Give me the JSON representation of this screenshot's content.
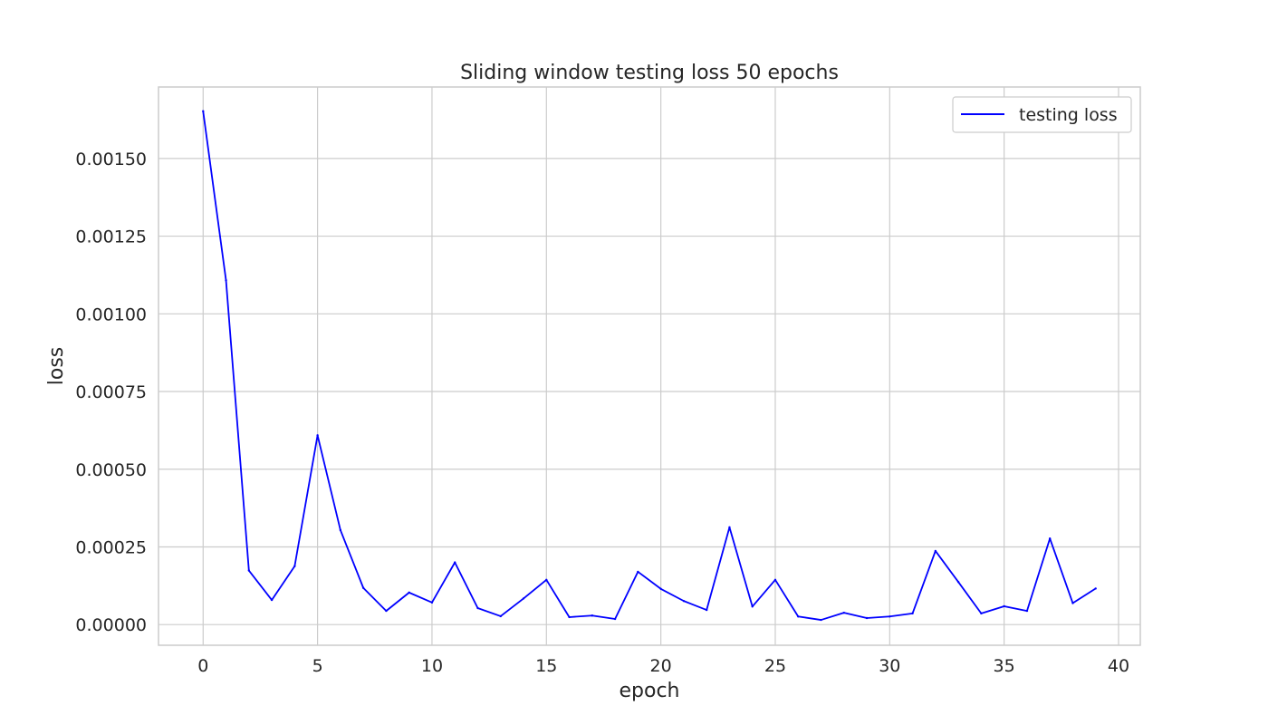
{
  "chart_data": {
    "type": "line",
    "title": "Sliding window testing loss 50 epochs",
    "xlabel": "epoch",
    "ylabel": "loss",
    "xlim": [
      -1.95,
      40.95
    ],
    "ylim": [
      -6.65e-05,
      0.00173
    ],
    "xticks": [
      0,
      5,
      10,
      15,
      20,
      25,
      30,
      35,
      40
    ],
    "xtick_labels": [
      "0",
      "5",
      "10",
      "15",
      "20",
      "25",
      "30",
      "35",
      "40"
    ],
    "yticks": [
      0.0,
      0.00025,
      0.0005,
      0.00075,
      0.001,
      0.00125,
      0.0015
    ],
    "ytick_labels": [
      "0.00000",
      "0.00025",
      "0.00050",
      "0.00075",
      "0.00100",
      "0.00125",
      "0.00150"
    ],
    "grid": true,
    "legend_position": "top-right",
    "series": [
      {
        "name": "testing loss",
        "color": "#0000ff",
        "x": [
          0,
          1,
          2,
          3,
          4,
          5,
          6,
          7,
          8,
          9,
          10,
          11,
          12,
          13,
          14,
          15,
          16,
          17,
          18,
          19,
          20,
          21,
          22,
          23,
          24,
          25,
          26,
          27,
          28,
          29,
          30,
          31,
          32,
          33,
          34,
          35,
          36,
          37,
          38,
          39
        ],
        "values": [
          0.001652,
          0.001108,
          0.000174,
          7.9e-05,
          0.000188,
          0.000609,
          0.000304,
          0.000118,
          4.4e-05,
          0.000103,
          7.1e-05,
          0.0002,
          5.3e-05,
          2.7e-05,
          8.4e-05,
          0.000144,
          2.4e-05,
          2.9e-05,
          1.8e-05,
          0.00017,
          0.000115,
          7.6e-05,
          4.7e-05,
          0.000313,
          5.8e-05,
          0.000144,
          2.6e-05,
          1.5e-05,
          3.8e-05,
          2.1e-05,
          2.6e-05,
          3.6e-05,
          0.000237,
          0.000137,
          3.6e-05,
          5.9e-05,
          4.4e-05,
          0.000277,
          6.9e-05,
          0.000116
        ]
      }
    ]
  }
}
